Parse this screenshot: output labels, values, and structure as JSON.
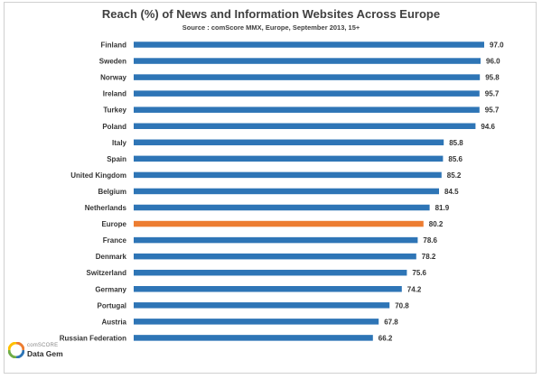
{
  "chart_data": {
    "type": "bar",
    "orientation": "horizontal",
    "title": "Reach (%) of News and Information Websites Across Europe",
    "subtitle": "Source : comScore MMX, Europe, September 2013, 15+",
    "xlim": [
      0,
      100
    ],
    "grid": false,
    "categories": [
      "Finland",
      "Sweden",
      "Norway",
      "Ireland",
      "Turkey",
      "Poland",
      "Italy",
      "Spain",
      "United Kingdom",
      "Belgium",
      "Netherlands",
      "Europe",
      "France",
      "Denmark",
      "Switzerland",
      "Germany",
      "Portugal",
      "Austria",
      "Russian Federation"
    ],
    "values": [
      97.0,
      96.0,
      95.8,
      95.7,
      95.7,
      94.6,
      85.8,
      85.6,
      85.2,
      84.5,
      81.9,
      80.2,
      78.6,
      78.2,
      75.6,
      74.2,
      70.8,
      67.8,
      66.2
    ],
    "value_labels": [
      "97.0",
      "96.0",
      "95.8",
      "95.7",
      "95.7",
      "94.6",
      "85.8",
      "85.6",
      "85.2",
      "84.5",
      "81.9",
      "80.2",
      "78.6",
      "78.2",
      "75.6",
      "74.2",
      "70.8",
      "67.8",
      "66.2"
    ],
    "colors": {
      "default": "#2e75b6",
      "highlight": "#ed7d31"
    },
    "highlight_category": "Europe"
  },
  "logo": {
    "brand": "comSCORE",
    "product": "Data Gem",
    "icon": "comscore-logo-icon"
  }
}
